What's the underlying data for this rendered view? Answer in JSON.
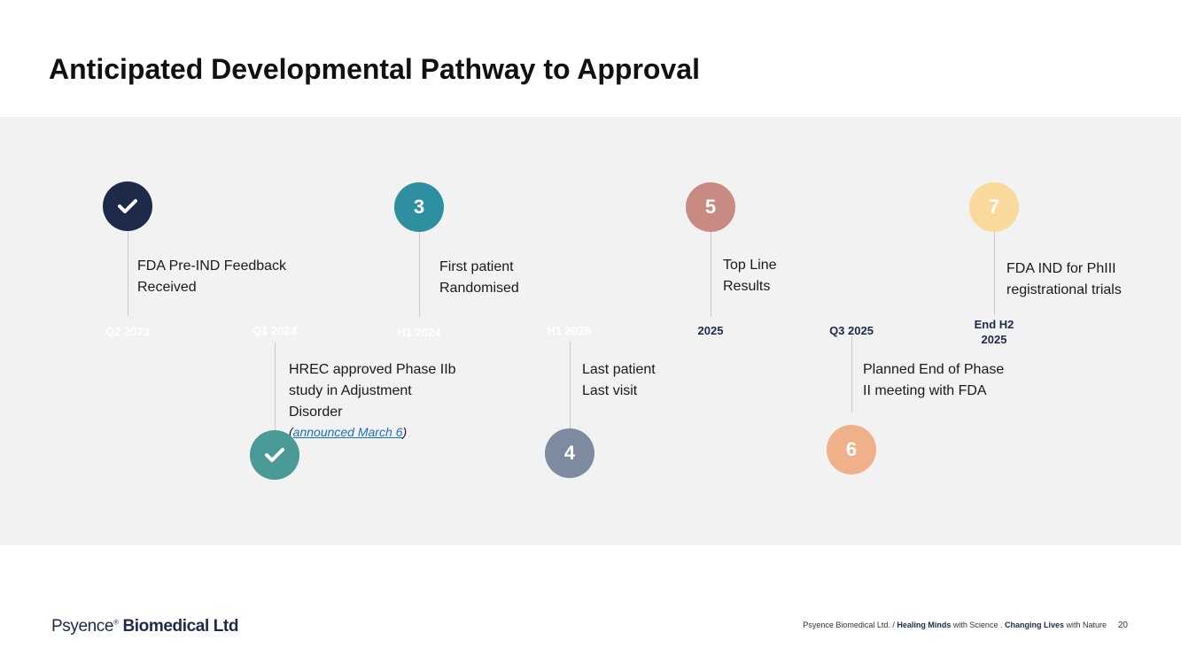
{
  "title": "Anticipated Developmental Pathway to Approval",
  "milestones": [
    {
      "marker": "",
      "icon": "check-icon",
      "color": "#1e2a4a",
      "text_line1": "FDA Pre-IND Feedback",
      "text_line2": "Received",
      "text_line3": "",
      "date_line1": "Q2 2023",
      "date_line2": ""
    },
    {
      "marker": "",
      "icon": "check-icon",
      "color": "#4a9a98",
      "text_line1": "HREC approved Phase IIb",
      "text_line2": "study in Adjustment",
      "text_line3": "Disorder",
      "note_prefix": "(",
      "link": "announced March 6",
      "note_suffix": ")",
      "date_line1": "Q1 2024",
      "date_line2": ""
    },
    {
      "marker": "3",
      "icon": "",
      "color": "#2e8fa0",
      "text_line1": "First patient",
      "text_line2": "Randomised",
      "text_line3": "",
      "date_line1": "H1 2024",
      "date_line2": ""
    },
    {
      "marker": "4",
      "icon": "",
      "color": "#7e8aa0",
      "text_line1": "Last patient",
      "text_line2": "Last visit",
      "text_line3": "",
      "date_line1": "H1 2025",
      "date_line2": ""
    },
    {
      "marker": "5",
      "icon": "",
      "color": "#c98a84",
      "text_line1": "Top Line",
      "text_line2": "Results",
      "text_line3": "",
      "date_line1": "2025",
      "date_line2": ""
    },
    {
      "marker": "6",
      "icon": "",
      "color": "#efb08a",
      "text_line1": "Planned End of Phase",
      "text_line2": "II meeting with FDA",
      "text_line3": "",
      "date_line1": "Q3 2025",
      "date_line2": ""
    },
    {
      "marker": "7",
      "icon": "",
      "color": "#fad99c",
      "text_line1": "FDA IND for PhIII",
      "text_line2": "registrational trials",
      "text_line3": "",
      "date_line1": "End H2",
      "date_line2": "2025"
    }
  ],
  "footer": {
    "logo_brand": "Psyence",
    "logo_tm": "®",
    "logo_company": "Biomedical Ltd",
    "tag_company": "Psyence Biomedical Ltd. / ",
    "tag_bold1": "Healing Minds",
    "tag_mid": " with Science . ",
    "tag_bold2": "Changing Lives",
    "tag_end": " with Nature",
    "page_number": "20"
  }
}
